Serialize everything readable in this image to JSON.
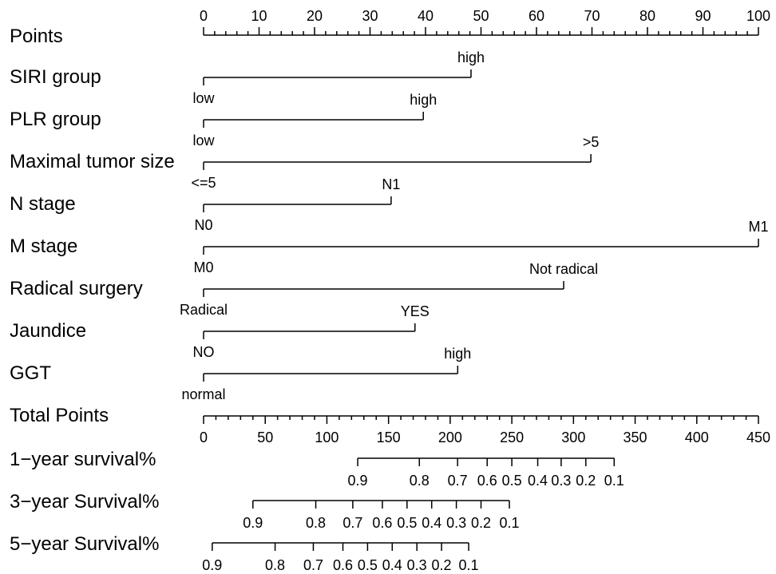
{
  "chart_data": {
    "type": "nomogram",
    "points_scale": {
      "label": "Points",
      "min": 0,
      "max": 100,
      "labeled_ticks": [
        0,
        10,
        20,
        30,
        40,
        50,
        60,
        70,
        80,
        90,
        100
      ],
      "minor_step": 2
    },
    "predictors": [
      {
        "label": "SIRI group",
        "levels": [
          {
            "name": "low",
            "points": 0
          },
          {
            "name": "high",
            "points": 48.2
          }
        ]
      },
      {
        "label": "PLR group",
        "levels": [
          {
            "name": "low",
            "points": 0
          },
          {
            "name": "high",
            "points": 39.6
          }
        ]
      },
      {
        "label": "Maximal tumor size",
        "levels": [
          {
            "name": "<=5",
            "points": 0
          },
          {
            "name": ">5",
            "points": 69.8
          }
        ]
      },
      {
        "label": "N stage",
        "levels": [
          {
            "name": "N0",
            "points": 0
          },
          {
            "name": "N1",
            "points": 33.8
          }
        ]
      },
      {
        "label": "M stage",
        "levels": [
          {
            "name": "M0",
            "points": 0
          },
          {
            "name": "M1",
            "points": 100
          }
        ]
      },
      {
        "label": "Radical surgery",
        "levels": [
          {
            "name": "Radical",
            "points": 0
          },
          {
            "name": "Not radical",
            "points": 64.9
          }
        ]
      },
      {
        "label": "Jaundice",
        "levels": [
          {
            "name": "NO",
            "points": 0
          },
          {
            "name": "YES",
            "points": 38.1
          }
        ]
      },
      {
        "label": "GGT",
        "levels": [
          {
            "name": "normal",
            "points": 0
          },
          {
            "name": "high",
            "points": 45.8
          }
        ]
      }
    ],
    "total_points_scale": {
      "label": "Total Points",
      "min": 0,
      "max": 450,
      "labeled_ticks": [
        0,
        50,
        100,
        150,
        200,
        250,
        300,
        350,
        400,
        450
      ],
      "minor_step": 10
    },
    "survival_scales": [
      {
        "label": "1−year survival%",
        "ticks": [
          {
            "label": "0.9",
            "total_points": 125
          },
          {
            "label": "0.8",
            "total_points": 175
          },
          {
            "label": "0.7",
            "total_points": 206
          },
          {
            "label": "0.6",
            "total_points": 230
          },
          {
            "label": "0.5",
            "total_points": 250
          },
          {
            "label": "0.4",
            "total_points": 271
          },
          {
            "label": "0.3",
            "total_points": 290
          },
          {
            "label": "0.2",
            "total_points": 310
          },
          {
            "label": "0.1",
            "total_points": 333
          }
        ]
      },
      {
        "label": "3−year Survival%",
        "ticks": [
          {
            "label": "0.9",
            "total_points": 40
          },
          {
            "label": "0.8",
            "total_points": 91
          },
          {
            "label": "0.7",
            "total_points": 121
          },
          {
            "label": "0.6",
            "total_points": 145
          },
          {
            "label": "0.5",
            "total_points": 165
          },
          {
            "label": "0.4",
            "total_points": 185
          },
          {
            "label": "0.3",
            "total_points": 205
          },
          {
            "label": "0.2",
            "total_points": 225
          },
          {
            "label": "0.1",
            "total_points": 248
          }
        ]
      },
      {
        "label": "5−year Survival%",
        "ticks": [
          {
            "label": "0.9",
            "total_points": 7
          },
          {
            "label": "0.8",
            "total_points": 58
          },
          {
            "label": "0.7",
            "total_points": 89
          },
          {
            "label": "0.6",
            "total_points": 113
          },
          {
            "label": "0.5",
            "total_points": 133
          },
          {
            "label": "0.4",
            "total_points": 153
          },
          {
            "label": "0.3",
            "total_points": 173
          },
          {
            "label": "0.2",
            "total_points": 193
          },
          {
            "label": "0.1",
            "total_points": 215
          }
        ]
      }
    ]
  }
}
